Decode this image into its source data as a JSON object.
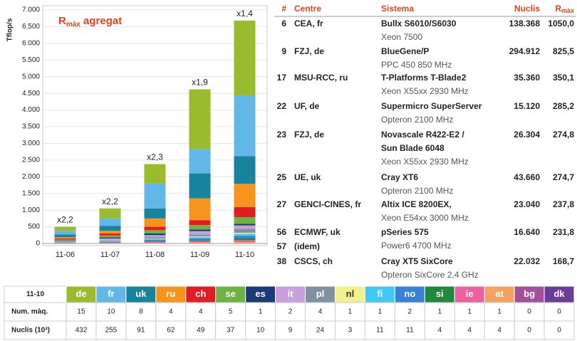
{
  "chart_data": {
    "type": "stacked_bar",
    "title": {
      "main": "R",
      "sub": "màx",
      "rest": " agregat"
    },
    "y_label": "Tflop/s",
    "categories": [
      "11-06",
      "11-07",
      "11-08",
      "11-09",
      "11-10"
    ],
    "annotations": [
      "x2,2",
      "x2,2",
      "x2,3",
      "x1,9",
      "x1,4"
    ],
    "ylim": [
      0,
      7000
    ],
    "yticks": [
      0,
      500,
      {
        "value": 1000,
        "label": "1.000"
      },
      {
        "value": 1500,
        "label": "1.500"
      },
      {
        "value": 2000,
        "label": "2.000"
      },
      {
        "value": 2500,
        "label": "2.500"
      },
      {
        "value": 3000,
        "label": "3.000"
      },
      {
        "value": 3500,
        "label": "3.500"
      },
      {
        "value": 4000,
        "label": "4.000"
      },
      {
        "value": 4500,
        "label": "4.500"
      },
      {
        "value": 5000,
        "label": "5.000"
      },
      {
        "value": 5500,
        "label": "5.500"
      },
      {
        "value": 6000,
        "label": "6.000"
      },
      {
        "value": 6500,
        "label": "6.500"
      },
      {
        "value": 7000,
        "label": "7.000"
      }
    ],
    "grid": true,
    "series": [
      {
        "name": "de",
        "color": "#9bbb2f",
        "values": [
          120,
          300,
          580,
          1790,
          2240
        ]
      },
      {
        "name": "fr",
        "color": "#61b8e8",
        "values": [
          110,
          220,
          750,
          730,
          1820
        ]
      },
      {
        "name": "uk",
        "color": "#17839c",
        "values": [
          80,
          150,
          300,
          750,
          830
        ]
      },
      {
        "name": "ru",
        "color": "#f7941d",
        "values": [
          40,
          80,
          250,
          650,
          700
        ]
      },
      {
        "name": "ch",
        "color": "#e31b23",
        "values": [
          30,
          60,
          100,
          150,
          300
        ]
      },
      {
        "name": "se",
        "color": "#6db33f",
        "values": [
          30,
          60,
          100,
          130,
          200
        ]
      },
      {
        "name": "es",
        "color": "#1b3a7a",
        "values": [
          15,
          30,
          50,
          50,
          50
        ]
      },
      {
        "name": "it",
        "color": "#c9a0dc",
        "values": [
          20,
          40,
          60,
          100,
          100
        ]
      },
      {
        "name": "pl",
        "color": "#7f939e",
        "values": [
          10,
          20,
          40,
          60,
          120
        ]
      },
      {
        "name": "nl",
        "color": "#f3f18f",
        "values": [
          5,
          10,
          10,
          20,
          30
        ]
      },
      {
        "name": "fi",
        "color": "#42c8f5",
        "values": [
          10,
          20,
          30,
          40,
          60
        ]
      },
      {
        "name": "no",
        "color": "#3a7fd8",
        "values": [
          10,
          20,
          40,
          50,
          80
        ]
      },
      {
        "name": "si",
        "color": "#1f8a3b",
        "values": [
          5,
          10,
          20,
          30,
          50
        ]
      },
      {
        "name": "ie",
        "color": "#ec5fa0",
        "values": [
          10,
          20,
          30,
          40,
          60
        ]
      },
      {
        "name": "at",
        "color": "#f4a261",
        "values": [
          5,
          10,
          20,
          30,
          40
        ]
      },
      {
        "name": "bg",
        "color": "#a3509a",
        "values": [
          0,
          0,
          0,
          0,
          0
        ]
      },
      {
        "name": "dk",
        "color": "#6a3d99",
        "values": [
          0,
          0,
          0,
          0,
          0
        ]
      }
    ]
  },
  "top_table": {
    "columns": [
      "#",
      "Centre",
      "Sistema",
      "Nuclis"
    ],
    "rmax_column": {
      "main": "R",
      "sub": "màx"
    },
    "rows": [
      {
        "rank": [
          "6"
        ],
        "centre": [
          "CEA, fr"
        ],
        "system": [
          "Bullx S6010/S6030"
        ],
        "processor": "Xeon 7500",
        "cores": "138.368",
        "rmax": "1050,0"
      },
      {
        "rank": [
          "9"
        ],
        "centre": [
          "FZJ, de"
        ],
        "system": [
          "BlueGene/P"
        ],
        "processor": "PPC 450 850 MHz",
        "cores": "294.912",
        "rmax": "825,5"
      },
      {
        "rank": [
          "17"
        ],
        "centre": [
          "MSU-RCC, ru"
        ],
        "system": [
          "T-Platforms T-Blade2"
        ],
        "processor": "Xeon X55xx 2930 MHz",
        "cores": "35.360",
        "rmax": "350,1"
      },
      {
        "rank": [
          "22"
        ],
        "centre": [
          "UF, de"
        ],
        "system": [
          "Supermicro SuperServer"
        ],
        "processor": "Opteron 2100 MHz",
        "cores": "15.120",
        "rmax": "285,2"
      },
      {
        "rank": [
          "23"
        ],
        "centre": [
          "FZJ, de"
        ],
        "system": [
          "Novascale R422-E2 /",
          "Sun Blade 6048"
        ],
        "processor": "Xeon X55xx 2930 MHz",
        "cores": "26.304",
        "rmax": "274,8"
      },
      {
        "rank": [
          "25"
        ],
        "centre": [
          "UE, uk"
        ],
        "system": [
          "Cray XT6"
        ],
        "processor": "Opteron 2100 MHz",
        "cores": "43.660",
        "rmax": "274,7"
      },
      {
        "rank": [
          "27"
        ],
        "centre": [
          "GENCI-CINES, fr"
        ],
        "system": [
          "Altix ICE 8200EX,"
        ],
        "processor": "Xeon E54xx 3000 MHz",
        "cores": "23.040",
        "rmax": "237,8"
      },
      {
        "rank": [
          "56",
          "57"
        ],
        "centre": [
          "ECMWF, uk",
          "(idem)"
        ],
        "system": [
          "pSeries 575"
        ],
        "processor": "Power6 4700 MHz",
        "cores": "16.640",
        "rmax": "231,8"
      },
      {
        "rank": [
          "38"
        ],
        "centre": [
          "CSCS, ch"
        ],
        "system": [
          "Cray XT5 SixCore"
        ],
        "processor": "Opteron SixCore 2,4 GHz",
        "cores": "22.032",
        "rmax": "168,7"
      }
    ]
  },
  "country_table": {
    "corner": "11-10",
    "rows": [
      {
        "label": "Num. màq.",
        "values": [
          15,
          10,
          8,
          4,
          4,
          5,
          1,
          2,
          4,
          1,
          1,
          2,
          1,
          1,
          1,
          0,
          0
        ]
      },
      {
        "label": "Nuclis (10³)",
        "values": [
          432,
          255,
          91,
          62,
          49,
          37,
          10,
          9,
          24,
          3,
          11,
          11,
          4,
          4,
          4,
          0,
          0
        ]
      }
    ]
  }
}
